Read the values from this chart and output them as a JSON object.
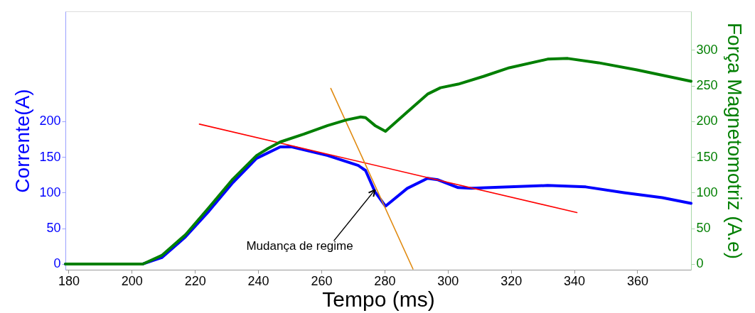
{
  "chart_data": {
    "type": "line",
    "xlabel": "Tempo (ms)",
    "ylabel": "Corrente(A)",
    "y2label": "Força Magnetomotriz (A.e)",
    "xlim": [
      179,
      377
    ],
    "xticks": [
      180,
      200,
      220,
      240,
      260,
      280,
      300,
      320,
      340,
      360
    ],
    "ylim": [
      -8,
      354
    ],
    "yticks": [
      0,
      50,
      100,
      150,
      200
    ],
    "y2lim": [
      -8,
      354
    ],
    "y2ticks": [
      0,
      50,
      100,
      150,
      200,
      250,
      300
    ],
    "grid": false,
    "marker": "none",
    "line_style": "solid",
    "series": [
      {
        "color": "#0000ff",
        "x": [
          179,
          190,
          203.5,
          209.5,
          217,
          224.4,
          232,
          239.5,
          247,
          250.7,
          262,
          271.7,
          274,
          277,
          280.3,
          287.2,
          293.6,
          296.9,
          303.3,
          307.4,
          319.5,
          331.6,
          343.7,
          355.8,
          367.9,
          377
        ],
        "values": [
          0,
          0,
          0,
          9,
          38,
          74,
          114,
          148,
          164,
          164,
          152,
          138,
          131,
          101,
          81,
          106,
          120,
          118,
          107,
          106,
          108,
          110,
          108,
          100,
          93,
          85
        ]
      },
      {
        "color": "#007f00",
        "axis": "y2",
        "x": [
          179,
          190,
          203.5,
          209.5,
          217,
          224.4,
          232,
          239.5,
          243.2,
          247,
          254.5,
          262,
          268,
          272.5,
          274,
          277,
          280.3,
          287.2,
          293.6,
          297.7,
          303.3,
          311.4,
          319.5,
          331.6,
          338,
          347.7,
          359.9,
          377
        ],
        "values": [
          0,
          0,
          0,
          12,
          41,
          79,
          119,
          152,
          162,
          171,
          182,
          194,
          202,
          206,
          205,
          194,
          186,
          213,
          238,
          247,
          252,
          263,
          275,
          287,
          288,
          282,
          272,
          256
        ]
      },
      {
        "color": "#ff0000",
        "x": [
          221.4,
          340.9
        ],
        "values": [
          196,
          72
        ]
      },
      {
        "color": "#e08a10",
        "x": [
          263,
          289
        ],
        "values": [
          246,
          -7
        ]
      }
    ],
    "annotations": [
      {
        "text": "Mudança de regime",
        "x": 277,
        "y": 104
      }
    ]
  }
}
